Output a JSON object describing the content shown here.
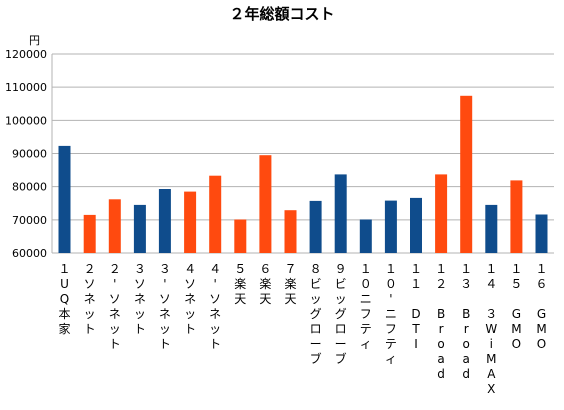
{
  "chart_data": {
    "type": "bar",
    "title": "２年総額コスト",
    "ylabel": "円",
    "ylim": [
      60000,
      120000
    ],
    "yticks": [
      60000,
      70000,
      80000,
      90000,
      100000,
      110000,
      120000
    ],
    "grid": true,
    "colors": {
      "blue": "#0f4c8c",
      "orange": "#ff4a0f"
    },
    "categories": [
      "１\nU\nQ\n本\n家",
      "２\nソ\nネ\nッ\nト",
      "２\n'\nソ\nネ\nッ\nト",
      "３\nソ\nネ\nッ\nト",
      "３\n'\nソ\nネ\nッ\nト",
      "４\nソ\nネ\nッ\nト",
      "４\n'\nソ\nネ\nッ\nト",
      "５\n楽\n天",
      "６\n楽\n天",
      "７\n楽\n天",
      "８\nビ\nッ\nグ\nロ\nー\nブ",
      "９\nビ\nッ\nグ\nロ\nー\nブ",
      "１\n０\nニ\nフ\nテ\nィ",
      "１\n０\n'\nニ\nフ\nテ\nィ",
      "１\n１\n \nD\nT\nI",
      "１\n２\n \nB\nr\no\na\nd",
      "１\n３\n \nB\nr\no\na\nd",
      "１\n４\n \n３\nW\ni\nM\nA\nX",
      "１\n５\n \nG\nM\nO",
      "１\n６\n \nG\nM\nO"
    ],
    "values": [
      92300,
      71500,
      76200,
      74500,
      79300,
      78500,
      83300,
      70100,
      89500,
      72900,
      75700,
      83700,
      70100,
      75800,
      76600,
      83700,
      107400,
      74500,
      81900,
      71600
    ],
    "bar_colors": [
      "blue",
      "orange",
      "orange",
      "blue",
      "blue",
      "orange",
      "orange",
      "orange",
      "orange",
      "orange",
      "blue",
      "blue",
      "blue",
      "blue",
      "blue",
      "orange",
      "orange",
      "blue",
      "orange",
      "blue"
    ]
  }
}
